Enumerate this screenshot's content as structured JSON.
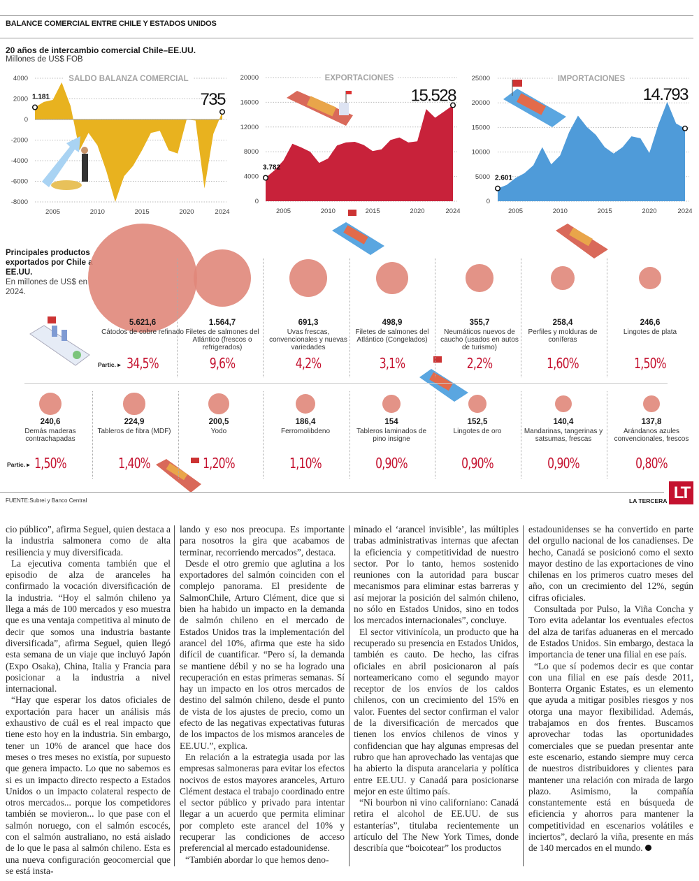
{
  "header": {
    "headline": "BALANCE COMERCIAL ENTRE CHILE Y ESTADOS UNIDOS",
    "subtitle": "20 años de intercambio comercial Chile–EE.UU.",
    "units": "Millones de US$ FOB"
  },
  "chart_data": [
    {
      "type": "area",
      "title": "SALDO BALANZA COMERCIAL",
      "color": "#e8b21f",
      "x": [
        2003,
        2004,
        2005,
        2006,
        2007,
        2008,
        2009,
        2010,
        2011,
        2012,
        2013,
        2014,
        2015,
        2016,
        2017,
        2018,
        2019,
        2020,
        2021,
        2022,
        2023,
        2024
      ],
      "values": [
        1181,
        1700,
        1900,
        3600,
        1300,
        -3000,
        -1300,
        -2500,
        -5000,
        -8000,
        -5500,
        -4500,
        -3000,
        -1300,
        -1100,
        -3000,
        -3300,
        0,
        -100,
        -6700,
        -1400,
        735
      ],
      "ylim": [
        -8000,
        4000
      ],
      "yticks": [
        "4000",
        "2000",
        "0",
        "-2000",
        "-4000",
        "-6000",
        "-8000"
      ],
      "xticks": [
        "2005",
        "2010",
        "2015",
        "2020",
        "2024"
      ],
      "start_label": "1.181",
      "end_label": "735",
      "grid": true
    },
    {
      "type": "area",
      "title": "EXPORTACIONES",
      "color": "#c8223a",
      "x": [
        2003,
        2004,
        2005,
        2006,
        2007,
        2008,
        2009,
        2010,
        2011,
        2012,
        2013,
        2014,
        2015,
        2016,
        2017,
        2018,
        2019,
        2020,
        2021,
        2022,
        2023,
        2024
      ],
      "values": [
        3782,
        5000,
        6600,
        9300,
        8700,
        8000,
        6200,
        6900,
        9000,
        9500,
        9600,
        9100,
        8100,
        8400,
        9900,
        10300,
        9500,
        9700,
        14900,
        13500,
        14500,
        15528
      ],
      "ylim": [
        0,
        20000
      ],
      "yticks": [
        "20000",
        "16000",
        "12000",
        "8000",
        "4000",
        "0"
      ],
      "xticks": [
        "2005",
        "2010",
        "2015",
        "2020",
        "2024"
      ],
      "start_label": "3.782",
      "end_label": "15.528",
      "grid": true
    },
    {
      "type": "area",
      "title": "IMPORTACIONES",
      "color": "#4f9bd9",
      "x": [
        2003,
        2004,
        2005,
        2006,
        2007,
        2008,
        2009,
        2010,
        2011,
        2012,
        2013,
        2014,
        2015,
        2016,
        2017,
        2018,
        2019,
        2020,
        2021,
        2022,
        2023,
        2024
      ],
      "values": [
        2601,
        3300,
        4700,
        5700,
        7300,
        11000,
        7500,
        9300,
        14000,
        17400,
        15100,
        13500,
        11000,
        9700,
        11000,
        13200,
        12800,
        9800,
        15500,
        20200,
        15800,
        14793
      ],
      "ylim": [
        0,
        25000
      ],
      "yticks": [
        "25000",
        "20000",
        "15000",
        "10000",
        "5000",
        "0"
      ],
      "xticks": [
        "2005",
        "2010",
        "2015",
        "2020",
        "2024"
      ],
      "start_label": "2.601",
      "end_label": "14.793",
      "grid": true
    }
  ],
  "products": {
    "title": "Principales productos exportados por Chile a EE.UU.",
    "subtitle": "En millones de US$ en 2024.",
    "partic_label": "Partic.",
    "bubble_color": "#e0877a",
    "items": [
      {
        "value": "5.621,6",
        "amount": 5621.6,
        "label": "Cátodos de cobre refinado",
        "share": "34,5%"
      },
      {
        "value": "1.564,7",
        "amount": 1564.7,
        "label": "Filetes de salmones del Atlántico (frescos o refrigerados)",
        "share": "9,6%"
      },
      {
        "value": "691,3",
        "amount": 691.3,
        "label": "Uvas frescas, convencionales y nuevas variedades",
        "share": "4,2%"
      },
      {
        "value": "498,9",
        "amount": 498.9,
        "label": "Filetes de salmones del Atlántico (Congelados)",
        "share": "3,1%"
      },
      {
        "value": "355,7",
        "amount": 355.7,
        "label": "Neumáticos nuevos de caucho (usados en autos de turismo)",
        "share": "2,2%"
      },
      {
        "value": "258,4",
        "amount": 258.4,
        "label": "Perfiles y molduras de coníferas",
        "share": "1,60%"
      },
      {
        "value": "246,6",
        "amount": 246.6,
        "label": "Lingotes de plata",
        "share": "1,50%"
      },
      {
        "value": "240,6",
        "amount": 240.6,
        "label": "Demás maderas contrachapadas",
        "share": "1,50%"
      },
      {
        "value": "224,9",
        "amount": 224.9,
        "label": "Tableros de fibra (MDF)",
        "share": "1,40%"
      },
      {
        "value": "200,5",
        "amount": 200.5,
        "label": "Yodo",
        "share": "1,20%"
      },
      {
        "value": "186,4",
        "amount": 186.4,
        "label": "Ferromolibdeno",
        "share": "1,10%"
      },
      {
        "value": "154",
        "amount": 154,
        "label": "Tableros laminados de pino insigne",
        "share": "0,90%"
      },
      {
        "value": "152,5",
        "amount": 152.5,
        "label": "Lingotes de oro",
        "share": "0,90%"
      },
      {
        "value": "140,4",
        "amount": 140.4,
        "label": "Mandarinas, tangerinas y satsumas, frescas",
        "share": "0,90%"
      },
      {
        "value": "137,8",
        "amount": 137.8,
        "label": "Arándanos azules convencionales, frescos",
        "share": "0,80%"
      }
    ]
  },
  "footer": {
    "source": "FUENTE:Subrei y Banco Central",
    "brand": "LA TERCERA",
    "logo": "LT"
  },
  "article": {
    "columns": [
      [
        "cio público”, afirma Seguel, quien destaca a la industria salmonera como de alta resiliencia y muy diversificada.",
        "La ejecutiva comenta también que el episodio de alza de aranceles ha confirmado la vocación diversificación de la industria. “Hoy el salmón chileno ya llega a más de 100 mercados y eso muestra que es una ventaja competitiva al minuto de decir que somos una industria bastante diversificada”, afirma Seguel, quien llegó esta semana de un viaje que incluyó Japón (Expo Osaka), China, Italia y Francia para posicionar a la industria a nivel internacional.",
        "“Hay que esperar los datos oficiales de exportación para hacer un análisis más exhaustivo de cuál es el real impacto que tiene esto hoy en la industria. Sin embargo, tener un 10% de arancel que hace dos meses o tres meses no existía, por supuesto que genera impacto. Lo que no sabemos es si es un impacto directo respecto a Estados Unidos o un impacto colateral respecto de otros mercados... porque los competidores también se movieron... lo que pase con el salmón noruego, con el salmón escocés, con el salmón australiano, no está aislado de lo que le pasa al salmón chileno. Esta es una nueva configuración geocomercial que se está insta-"
      ],
      [
        "lando y eso nos preocupa. Es importante para nosotros la gira que acabamos de terminar, recorriendo mercados”, destaca.",
        "Desde el otro gremio que aglutina a los exportadores del salmón coinciden con el complejo panorama. El presidente de SalmonChile, Arturo Clément, dice que si bien ha habido un impacto en la demanda de salmón chileno en el mercado de Estados Unidos tras la implementación del arancel del 10%, afirma que este ha sido difícil de cuantificar. “Pero sí, la demanda se mantiene débil y no se ha logrado una recuperación en estas primeras semanas. Sí hay un impacto en los otros mercados de destino del salmón chileno, desde el punto de vista de los ajustes de precio, como un efecto de las negativas expectativas futuras de los impactos de los mismos aranceles de EE.UU.”, explica.",
        "En relación a la estrategia usada por las empresas salmoneras para evitar los efectos nocivos de estos mayores aranceles, Arturo Clément destaca el trabajo coordinado entre el sector público y privado para intentar llegar a un acuerdo que permita eliminar por completo este arancel del 10% y recuperar las condiciones de acceso preferencial al mercado estadounidense.",
        "“También abordar lo que hemos deno-"
      ],
      [
        "minado el ‘arancel invisible’, las múltiples trabas administrativas internas que afectan la eficiencia y competitividad de nuestro sector. Por lo tanto, hemos sostenido reuniones con la autoridad para buscar mecanismos para eliminar estas barreras y así mejorar la posición del salmón chileno, no sólo en Estados Unidos, sino en todos los mercados internacionales”, concluye.",
        "El sector vitivinícola, un producto que ha recuperado su presencia en Estados Unidos, también es cauto. De hecho, las cifras oficiales en abril posicionaron al país norteamericano como el segundo mayor receptor de los envíos de los caldos chilenos, con un crecimiento del 15% en valor. Fuentes del sector confirman el valor de la diversificación de mercados que tienen los envíos chilenos de vinos y confidencian que hay algunas empresas del rubro que han aprovechado las ventajas que ha abierto la disputa arancelaria y política entre EE.UU. y Canadá para posicionarse mejor en este último país.",
        "“Ni bourbon ni vino californiano: Canadá retira el alcohol de EE.UU. de sus estanterías”, titulaba recientemente un artículo del The New York Times, donde describía que “boicotear” los productos"
      ],
      [
        "estadounidenses se ha convertido en parte del orgullo nacional de los canadienses. De hecho, Canadá se posicionó como el sexto mayor destino de las exportaciones de vino chilenas en los primeros cuatro meses del año, con un crecimiento del 12%, según cifras oficiales.",
        "Consultada por Pulso, la Viña Concha y Toro evita adelantar los eventuales efectos del alza de tarifas aduaneras en el mercado de Estados Unidos. Sin embargo, destaca la importancia de tener una filial en ese país.",
        "“Lo que sí podemos decir es que contar con una filial en ese país desde 2011, Bonterra Organic Estates, es un elemento que ayuda a mitigar posibles riesgos y nos otorga una mayor flexibilidad. Además, trabajamos en dos frentes. Buscamos aprovechar todas las oportunidades comerciales que se puedan presentar ante este escenario, estando siempre muy cerca de nuestros distribuidores y clientes para mantener una relación con mirada de largo plazo. Asimismo, la compañía constantemente está en búsqueda de eficiencia y ahorros para mantener la competitividad en escenarios volátiles e inciertos”, declaró la viña, presente en más de 140 mercados en el mundo."
      ]
    ]
  }
}
